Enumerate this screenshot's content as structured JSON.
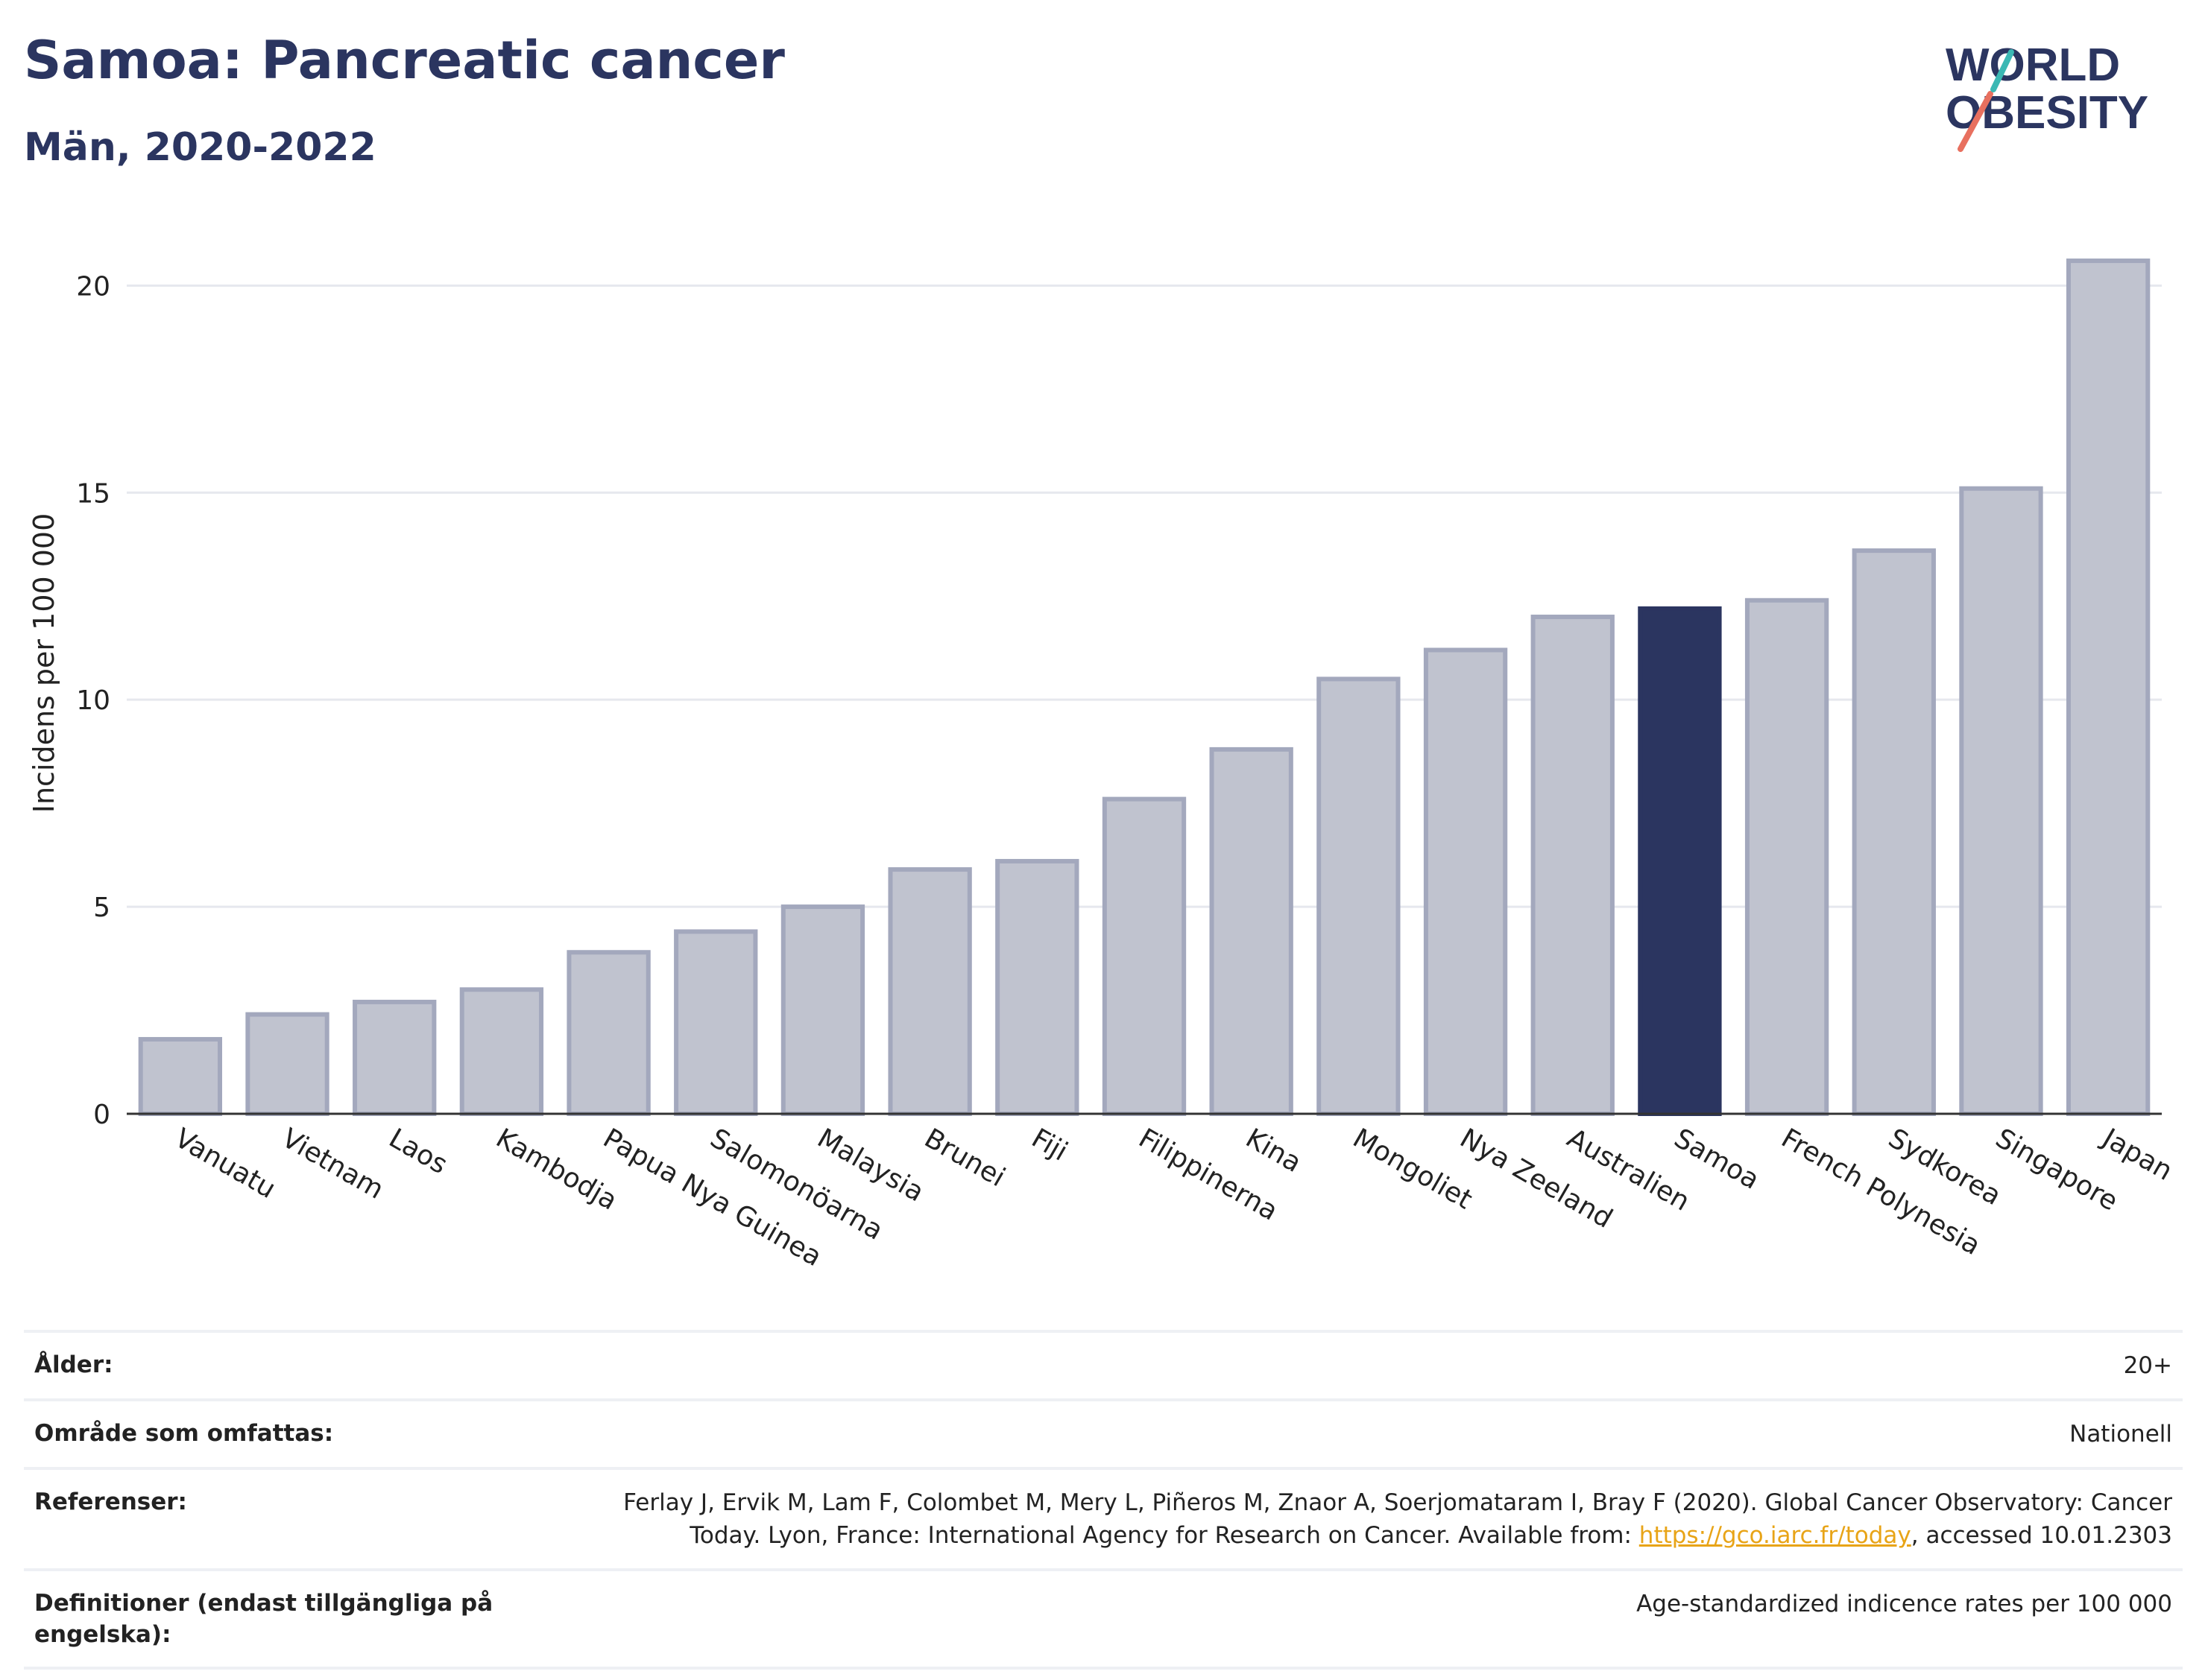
{
  "header": {
    "title": "Samoa: Pancreatic cancer",
    "subtitle": "Män, 2020-2022"
  },
  "logo": {
    "line1": "WORLD",
    "line2": "OBESITY"
  },
  "chart_data": {
    "type": "bar",
    "categories": [
      "Vanuatu",
      "Vietnam",
      "Laos",
      "Kambodja",
      "Papua Nya Guinea",
      "Salomonöarna",
      "Malaysia",
      "Brunei",
      "Fiji",
      "Filippinerna",
      "Kina",
      "Mongoliet",
      "Nya Zeeland",
      "Australien",
      "Samoa",
      "French Polynesia",
      "Sydkorea",
      "Singapore",
      "Japan"
    ],
    "values": [
      1.8,
      2.4,
      2.7,
      3.0,
      3.9,
      4.4,
      5.0,
      5.9,
      6.1,
      7.6,
      8.8,
      10.5,
      11.2,
      12.0,
      12.2,
      12.4,
      13.6,
      15.1,
      20.6
    ],
    "highlight": "Samoa",
    "ylabel": "Incidens per 100 000",
    "ylim": [
      0,
      21.5
    ],
    "yticks": [
      0,
      5,
      10,
      15,
      20
    ],
    "grid": true,
    "colors": {
      "bar": "#c0c3cf",
      "bar_edge": "#a3a8bd",
      "highlight": "#2b3560",
      "grid": "#e6e8ee",
      "axis": "#333333"
    }
  },
  "meta": {
    "age_label": "Ålder:",
    "age_value": "20+",
    "area_label": "Område som omfattas:",
    "area_value": "Nationell",
    "ref_label": "Referenser:",
    "ref_text_1": "Ferlay J, Ervik M, Lam F, Colombet M, Mery L, Piñeros M, Znaor A, Soerjomataram I, Bray F (2020). Global Cancer Observatory: Cancer Today. Lyon, France: International Agency for Research on Cancer. Available from: ",
    "ref_link": "https://gco.iarc.fr/today",
    "ref_text_2": ", accessed 10.01.2303",
    "def_label": "Definitioner (endast tillgängliga på engelska):",
    "def_value": "Age-standardized indicence rates per 100 000"
  }
}
